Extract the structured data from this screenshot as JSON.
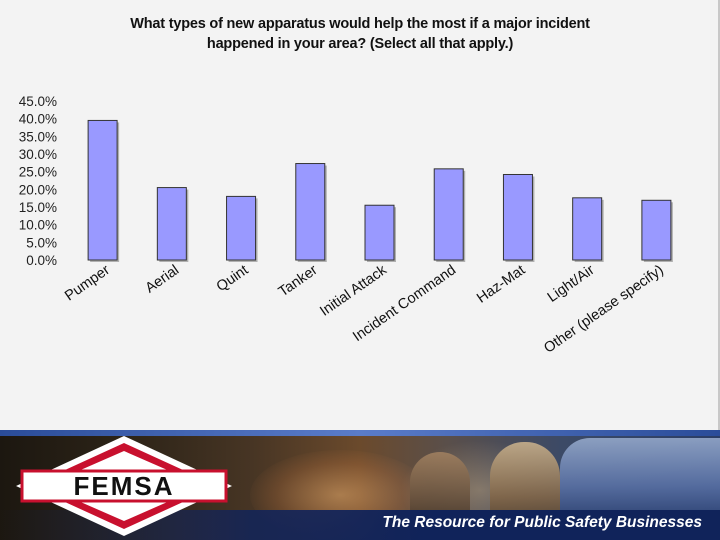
{
  "chart_data": {
    "type": "bar",
    "title": "What types of new apparatus would help the most if a major incident happened in your area? (Select all that apply.)",
    "title_lines": [
      "What types of new apparatus would help the most if a major incident",
      "happened in your area? (Select all that apply.)"
    ],
    "categories": [
      "Pumper",
      "Aerial",
      "Quint",
      "Tanker",
      "Initial Attack",
      "Incident Command",
      "Haz-Mat",
      "Light/Air",
      "Other (please specify)"
    ],
    "values": [
      39.5,
      20.5,
      18.0,
      27.3,
      15.5,
      25.8,
      24.2,
      17.6,
      16.9
    ],
    "y_ticks": [
      "45.0%",
      "40.0%",
      "35.0%",
      "30.0%",
      "25.0%",
      "20.0%",
      "15.0%",
      "10.0%",
      "5.0%",
      "0.0%"
    ],
    "ylim": [
      0,
      45
    ],
    "xlabel": "",
    "ylabel": "",
    "bar_color": "#9999ff",
    "grid": false,
    "legend": "none"
  },
  "footer": {
    "logo_text": "FEMSA",
    "tagline": "The Resource for Public Safety Businesses",
    "logo_red": "#c8102e",
    "tagline_bar_color": "#10235a"
  }
}
